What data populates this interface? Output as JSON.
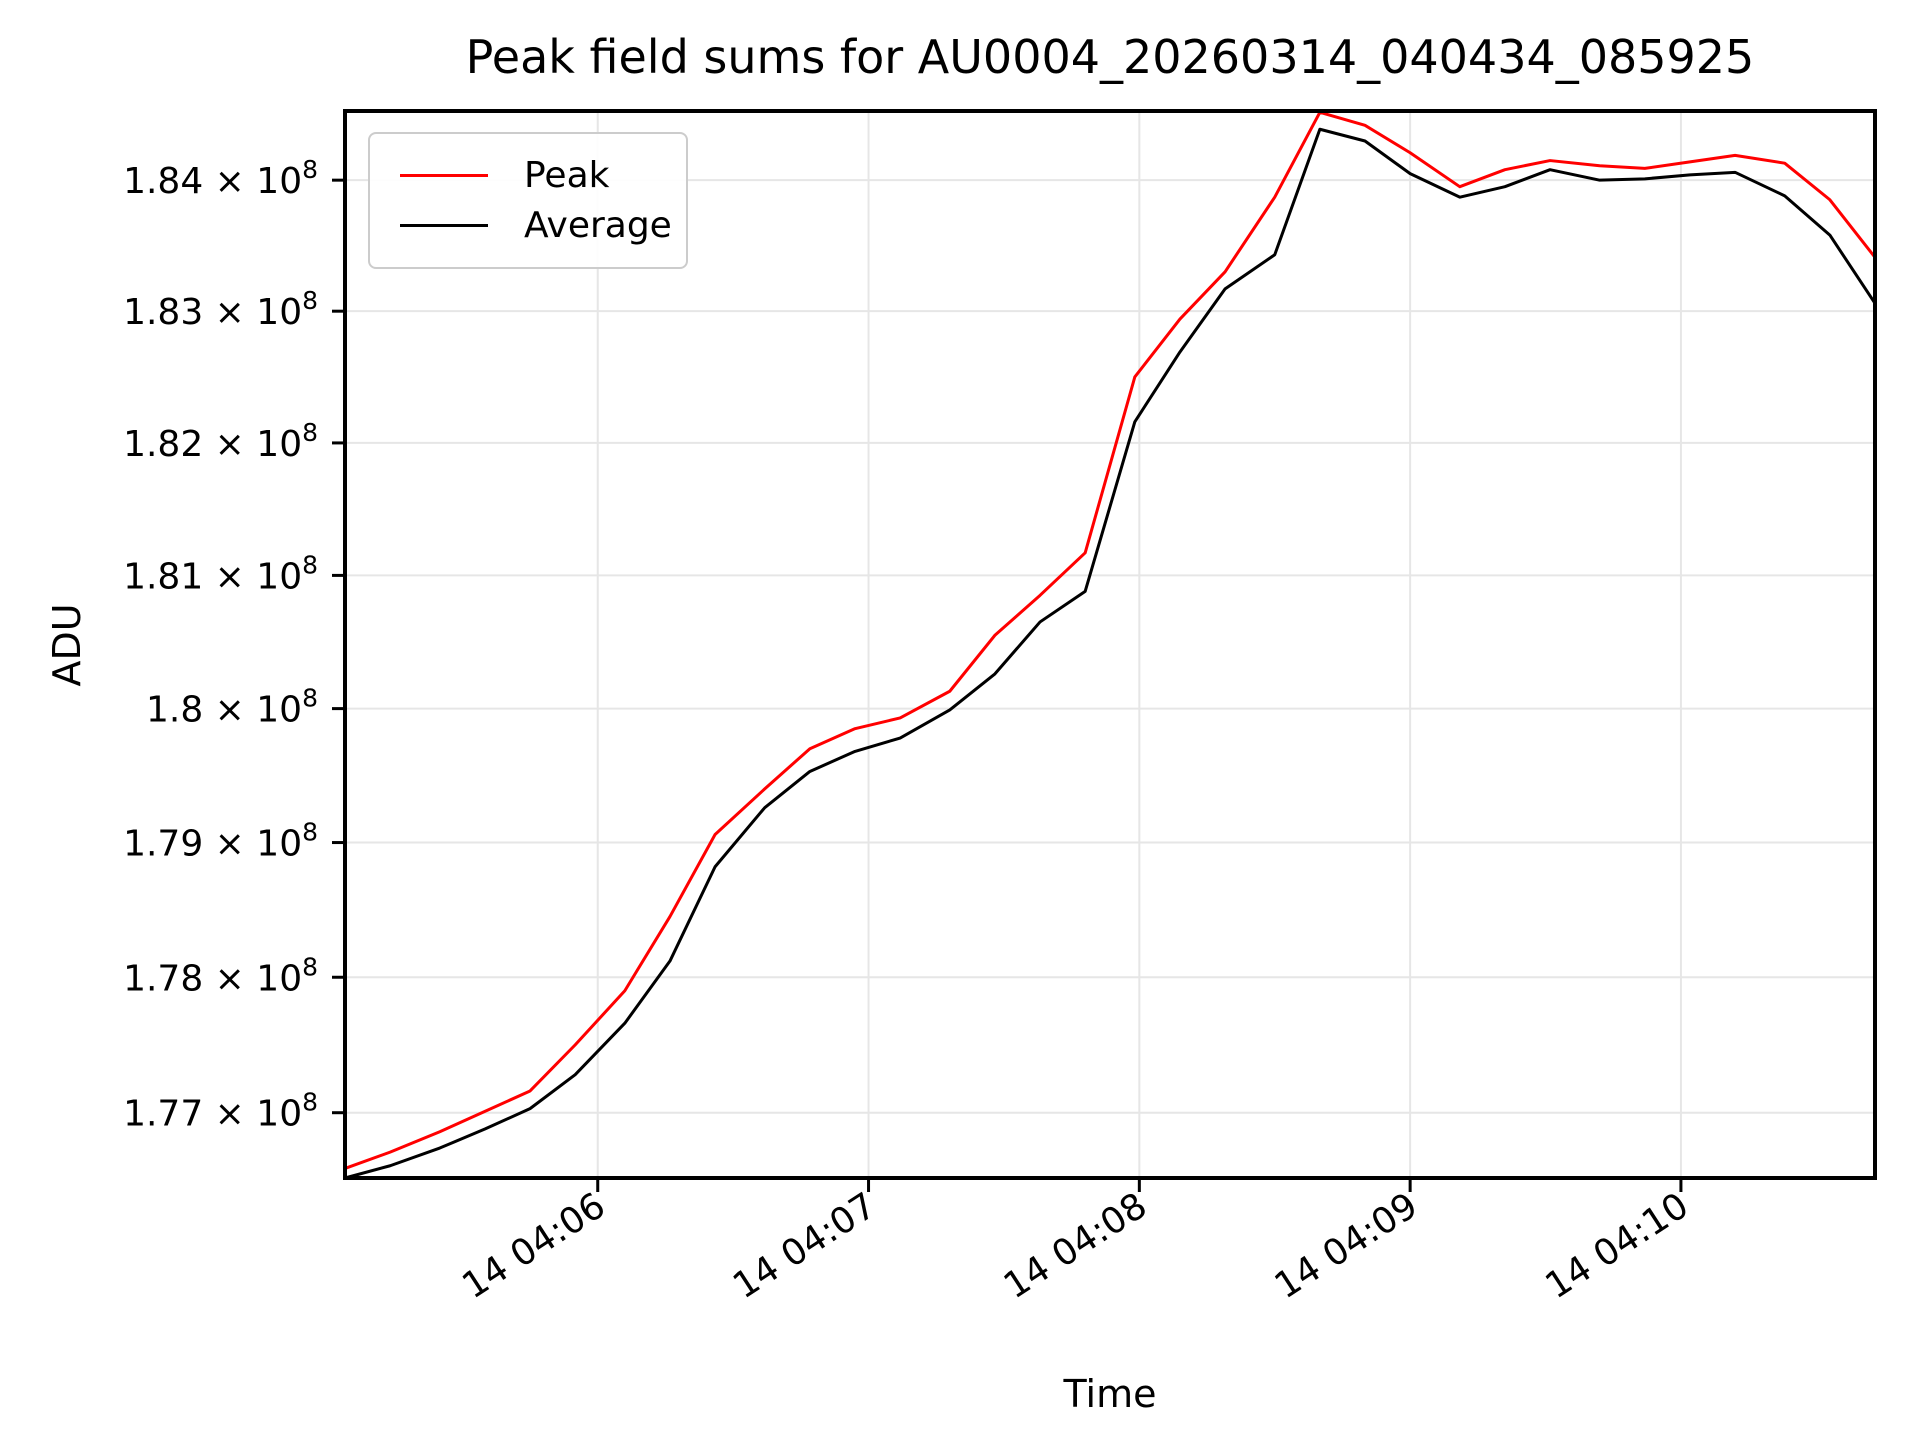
{
  "chart_data": {
    "type": "line",
    "title": "Peak field sums for AU0004_20260314_040434_085925",
    "xlabel": "Time",
    "ylabel": "ADU",
    "grid": true,
    "legend": {
      "position": "upper left",
      "entries": [
        "Peak",
        "Average"
      ]
    },
    "colors": {
      "grid": "#e6e6e6",
      "spine": "#000000",
      "legend_border": "#cccccc",
      "peak": "#ff0000",
      "average": "#000000"
    },
    "x_axis": {
      "start": "04:05:04",
      "end": "04:10:43",
      "ticks": [
        {
          "time": "04:06:00",
          "label": "14 04:06"
        },
        {
          "time": "04:07:00",
          "label": "14 04:07"
        },
        {
          "time": "04:08:00",
          "label": "14 04:08"
        },
        {
          "time": "04:09:00",
          "label": "14 04:09"
        },
        {
          "time": "04:10:00",
          "label": "14 04:10"
        }
      ]
    },
    "y_axis": {
      "scale": "log",
      "min": 176520000,
      "max": 184530000,
      "ticks": [
        {
          "value": 184000000,
          "base": "1.84 × 10",
          "exp": "8"
        },
        {
          "value": 183000000,
          "base": "1.83 × 10",
          "exp": "8"
        },
        {
          "value": 182000000,
          "base": "1.82 × 10",
          "exp": "8"
        },
        {
          "value": 181000000,
          "base": "1.81 × 10",
          "exp": "8"
        },
        {
          "value": 180000000,
          "base": "1.8 × 10",
          "exp": "8"
        },
        {
          "value": 179000000,
          "base": "1.79 × 10",
          "exp": "8"
        },
        {
          "value": 178000000,
          "base": "1.78 × 10",
          "exp": "8"
        },
        {
          "value": 177000000,
          "base": "1.77 × 10",
          "exp": "8"
        }
      ]
    },
    "times": [
      "04:05:04",
      "04:05:14",
      "04:05:25",
      "04:05:35",
      "04:05:45",
      "04:05:55",
      "04:06:06",
      "04:06:16",
      "04:06:26",
      "04:06:37",
      "04:06:47",
      "04:06:57",
      "04:07:07",
      "04:07:18",
      "04:07:28",
      "04:07:38",
      "04:07:48",
      "04:07:59",
      "04:08:09",
      "04:08:19",
      "04:08:30",
      "04:08:40",
      "04:08:50",
      "04:09:00",
      "04:09:11",
      "04:09:21",
      "04:09:31",
      "04:09:42",
      "04:09:52",
      "04:10:02",
      "04:10:12",
      "04:10:23",
      "04:10:33",
      "04:10:43"
    ],
    "series": [
      {
        "name": "Peak",
        "color": "#ff0000",
        "values_adu": [
          176590000,
          176710000,
          176860000,
          177010000,
          177160000,
          177500000,
          177900000,
          178450000,
          179060000,
          179400000,
          179700000,
          179850000,
          179930000,
          180130000,
          180550000,
          180850000,
          181170000,
          182500000,
          182940000,
          183300000,
          183870000,
          184520000,
          184420000,
          184210000,
          183950000,
          184080000,
          184150000,
          184110000,
          184090000,
          184140000,
          184190000,
          184130000,
          183850000,
          183410000
        ]
      },
      {
        "name": "Average",
        "color": "#000000",
        "values_adu": [
          176520000,
          176610000,
          176740000,
          176880000,
          177030000,
          177280000,
          177660000,
          178120000,
          178820000,
          179260000,
          179530000,
          179680000,
          179780000,
          179990000,
          180260000,
          180650000,
          180880000,
          182160000,
          182690000,
          183170000,
          183430000,
          184390000,
          184300000,
          184050000,
          183870000,
          183950000,
          184080000,
          184000000,
          184010000,
          184040000,
          184060000,
          183880000,
          183580000,
          183060000
        ]
      }
    ]
  }
}
